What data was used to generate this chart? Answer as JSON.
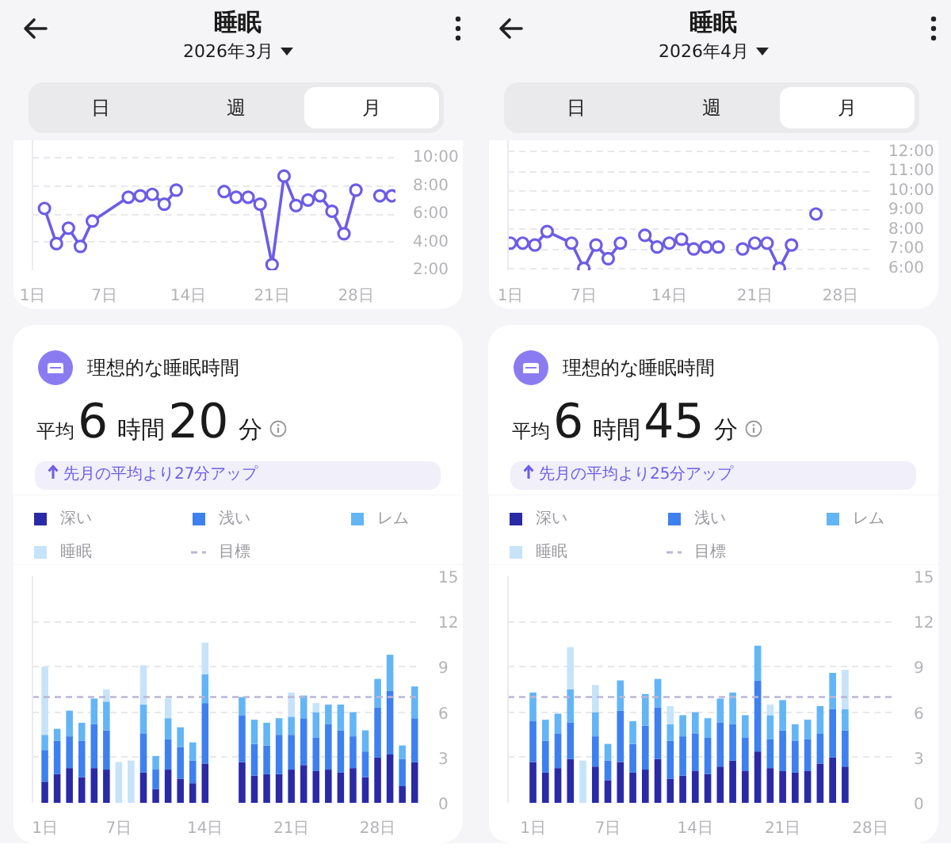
{
  "chart_data": [
    {
      "type": "line",
      "title": "睡眠",
      "subtitle": "2026年3月",
      "annotations": [
        "日",
        "週",
        "月"
      ],
      "x": [
        2,
        3,
        4,
        5,
        6,
        9,
        10,
        11,
        12,
        13,
        14,
        17,
        18,
        19,
        20,
        21,
        22,
        23,
        24,
        25,
        26,
        27,
        28,
        29,
        30,
        31
      ],
      "series": [
        {
          "color": "#6c5ce7",
          "values": [
            6.4,
            3.9,
            5.0,
            3.7,
            5.5,
            7.2,
            7.3,
            7.4,
            6.7,
            7.7,
            null,
            7.6,
            7.2,
            7.2,
            6.7,
            2.4,
            8.7,
            6.6,
            7.0,
            7.3,
            6.2,
            4.6,
            7.7,
            null,
            7.3,
            7.3
          ]
        }
      ],
      "xlim": [
        1,
        31.3
      ],
      "xticks": [
        {
          "value": 1,
          "label": "1日"
        },
        {
          "value": 7,
          "label": "7日"
        },
        {
          "value": 14,
          "label": "14日"
        },
        {
          "value": 21,
          "label": "21日"
        },
        {
          "value": 28,
          "label": "28日"
        }
      ],
      "ylim": [
        2,
        11.25
      ],
      "yticks": [
        {
          "value": 2,
          "label": "2:00"
        },
        {
          "value": 4,
          "label": "4:00"
        },
        {
          "value": 6,
          "label": "6:00"
        },
        {
          "value": 8,
          "label": "8:00"
        },
        {
          "value": 10,
          "label": "10:00"
        }
      ],
      "grid": "y",
      "marker": "circle"
    },
    {
      "type": "bar",
      "title": "理想的な睡眠時間",
      "subtitle": "平均6時間20分",
      "annotations": [
        "先月の平均より27分アップ"
      ],
      "stacked": true,
      "x": [
        1,
        2,
        3,
        4,
        5,
        6,
        7,
        8,
        9,
        10,
        11,
        12,
        13,
        14,
        15,
        16,
        17,
        18,
        19,
        20,
        21,
        22,
        23,
        24,
        25,
        26,
        27,
        28,
        29,
        30,
        31
      ],
      "series": [
        {
          "name": "深い",
          "color": "#2a2aa6",
          "values": [
            1.4,
            1.9,
            2.3,
            1.7,
            2.3,
            2.2,
            null,
            null,
            2.0,
            0.9,
            2.2,
            1.6,
            1.3,
            2.6,
            null,
            null,
            2.7,
            1.8,
            1.9,
            1.9,
            2.2,
            2.5,
            2.1,
            2.2,
            2.0,
            2.3,
            1.7,
            3.0,
            3.2,
            1.1,
            2.7
          ]
        },
        {
          "name": "浅い",
          "color": "#3e80ef",
          "values": [
            2.1,
            2.2,
            2.1,
            2.4,
            2.9,
            2.6,
            null,
            null,
            2.6,
            1.3,
            2.0,
            2.1,
            1.5,
            4.0,
            null,
            null,
            3.1,
            2.1,
            1.9,
            2.6,
            2.3,
            3.1,
            2.2,
            3.0,
            2.8,
            2.1,
            1.7,
            3.3,
            4.2,
            1.8,
            2.9
          ]
        },
        {
          "name": "レム",
          "color": "#63b5f6",
          "values": [
            1.0,
            0.8,
            1.7,
            1.2,
            1.7,
            1.9,
            null,
            null,
            1.9,
            0.9,
            1.4,
            1.3,
            1.2,
            1.9,
            null,
            null,
            1.2,
            1.6,
            1.5,
            1.1,
            1.2,
            1.5,
            1.7,
            1.3,
            1.7,
            1.6,
            1.4,
            1.9,
            2.4,
            0.9,
            2.1
          ]
        },
        {
          "name": "睡眠",
          "color": "#c6e3fa",
          "values": [
            4.5,
            null,
            null,
            null,
            null,
            0.8,
            2.7,
            2.8,
            2.6,
            null,
            1.3,
            null,
            null,
            2.1,
            null,
            null,
            null,
            null,
            null,
            null,
            1.6,
            null,
            0.6,
            null,
            null,
            null,
            null,
            null,
            null,
            null,
            null
          ]
        }
      ],
      "xlim": [
        0,
        31.5
      ],
      "xticks": [
        {
          "value": 1,
          "label": "1日"
        },
        {
          "value": 7,
          "label": "7日"
        },
        {
          "value": 14,
          "label": "14日"
        },
        {
          "value": 21,
          "label": "21日"
        },
        {
          "value": 28,
          "label": "28日"
        }
      ],
      "ylim": [
        0,
        15
      ],
      "yticks": [
        0,
        3,
        6,
        9,
        12,
        15
      ],
      "grid": "y",
      "legend": "top",
      "ref_lines": [
        {
          "axis": "y",
          "value": 7,
          "label": "目標",
          "color": "#b9b6d6",
          "line_style": "dashed"
        }
      ]
    },
    {
      "type": "line",
      "title": "睡眠",
      "subtitle": "2026年4月",
      "annotations": [
        "日",
        "週",
        "月"
      ],
      "x": [
        1,
        2,
        3,
        4,
        6,
        7,
        8,
        9,
        10,
        11,
        12,
        13,
        14,
        15,
        16,
        17,
        18,
        19,
        20,
        21,
        22,
        23,
        24,
        25,
        26
      ],
      "series": [
        {
          "color": "#6c5ce7",
          "values": [
            7.3,
            7.3,
            7.2,
            7.9,
            7.3,
            6.0,
            7.2,
            6.5,
            7.3,
            null,
            7.7,
            7.1,
            7.3,
            7.5,
            7.0,
            7.1,
            7.1,
            null,
            7.0,
            7.3,
            7.3,
            6.0,
            7.2,
            null,
            8.8
          ]
        }
      ],
      "xlim": [
        0.8,
        30.5
      ],
      "xticks": [
        {
          "value": 1,
          "label": "1日"
        },
        {
          "value": 7,
          "label": "7日"
        },
        {
          "value": 14,
          "label": "14日"
        },
        {
          "value": 21,
          "label": "21日"
        },
        {
          "value": 28,
          "label": "28日"
        }
      ],
      "ylim": [
        5.9,
        12.6
      ],
      "yticks": [
        {
          "value": 6,
          "label": "6:00"
        },
        {
          "value": 7,
          "label": "7:00"
        },
        {
          "value": 8,
          "label": "8:00"
        },
        {
          "value": 9,
          "label": "9:00"
        },
        {
          "value": 10,
          "label": "10:00"
        },
        {
          "value": 11,
          "label": "11:00"
        },
        {
          "value": 12,
          "label": "12:00"
        }
      ],
      "grid": "y",
      "marker": "circle"
    },
    {
      "type": "bar",
      "title": "理想的な睡眠時間",
      "subtitle": "平均6時間45分",
      "annotations": [
        "先月の平均より25分アップ"
      ],
      "stacked": true,
      "x": [
        1,
        2,
        3,
        4,
        5,
        6,
        7,
        8,
        9,
        10,
        11,
        12,
        13,
        14,
        15,
        16,
        17,
        18,
        19,
        20,
        21,
        22,
        23,
        24,
        25,
        26
      ],
      "series": [
        {
          "name": "深い",
          "color": "#2a2aa6",
          "values": [
            2.7,
            2.0,
            2.3,
            2.9,
            null,
            2.4,
            1.5,
            2.7,
            2.0,
            2.2,
            2.9,
            1.6,
            1.8,
            2.1,
            1.9,
            2.4,
            2.8,
            2.1,
            3.4,
            2.3,
            2.1,
            2.0,
            2.1,
            2.6,
            3.0,
            2.4
          ]
        },
        {
          "name": "浅い",
          "color": "#3e80ef",
          "values": [
            2.7,
            2.1,
            2.3,
            2.4,
            null,
            2.0,
            1.3,
            3.4,
            1.9,
            2.9,
            3.4,
            2.5,
            2.6,
            2.5,
            2.4,
            2.9,
            2.4,
            2.2,
            4.7,
            1.9,
            2.7,
            2.1,
            2.1,
            2.0,
            3.2,
            2.4
          ]
        },
        {
          "name": "レム",
          "color": "#63b5f6",
          "values": [
            1.9,
            1.4,
            1.3,
            2.2,
            null,
            1.6,
            1.1,
            2.0,
            1.5,
            2.1,
            1.9,
            1.1,
            1.4,
            1.4,
            1.3,
            1.6,
            2.1,
            1.5,
            2.3,
            1.6,
            2.0,
            1.1,
            1.3,
            1.8,
            2.4,
            1.4
          ]
        },
        {
          "name": "睡眠",
          "color": "#c6e3fa",
          "values": [
            null,
            null,
            null,
            2.8,
            2.8,
            1.8,
            null,
            null,
            null,
            null,
            null,
            1.2,
            null,
            null,
            null,
            null,
            null,
            null,
            null,
            0.7,
            null,
            null,
            null,
            null,
            null,
            2.6
          ]
        }
      ],
      "xlim": [
        -1,
        30.1
      ],
      "xticks": [
        {
          "value": 1,
          "label": "1日"
        },
        {
          "value": 7,
          "label": "7日"
        },
        {
          "value": 14,
          "label": "14日"
        },
        {
          "value": 21,
          "label": "21日"
        },
        {
          "value": 28,
          "label": "28日"
        }
      ],
      "ylim": [
        0,
        15
      ],
      "yticks": [
        0,
        3,
        6,
        9,
        12,
        15
      ],
      "grid": "y",
      "legend": "top",
      "ref_lines": [
        {
          "axis": "y",
          "value": 7,
          "label": "目標",
          "color": "#b9b6d6",
          "line_style": "dashed"
        }
      ]
    }
  ]
}
